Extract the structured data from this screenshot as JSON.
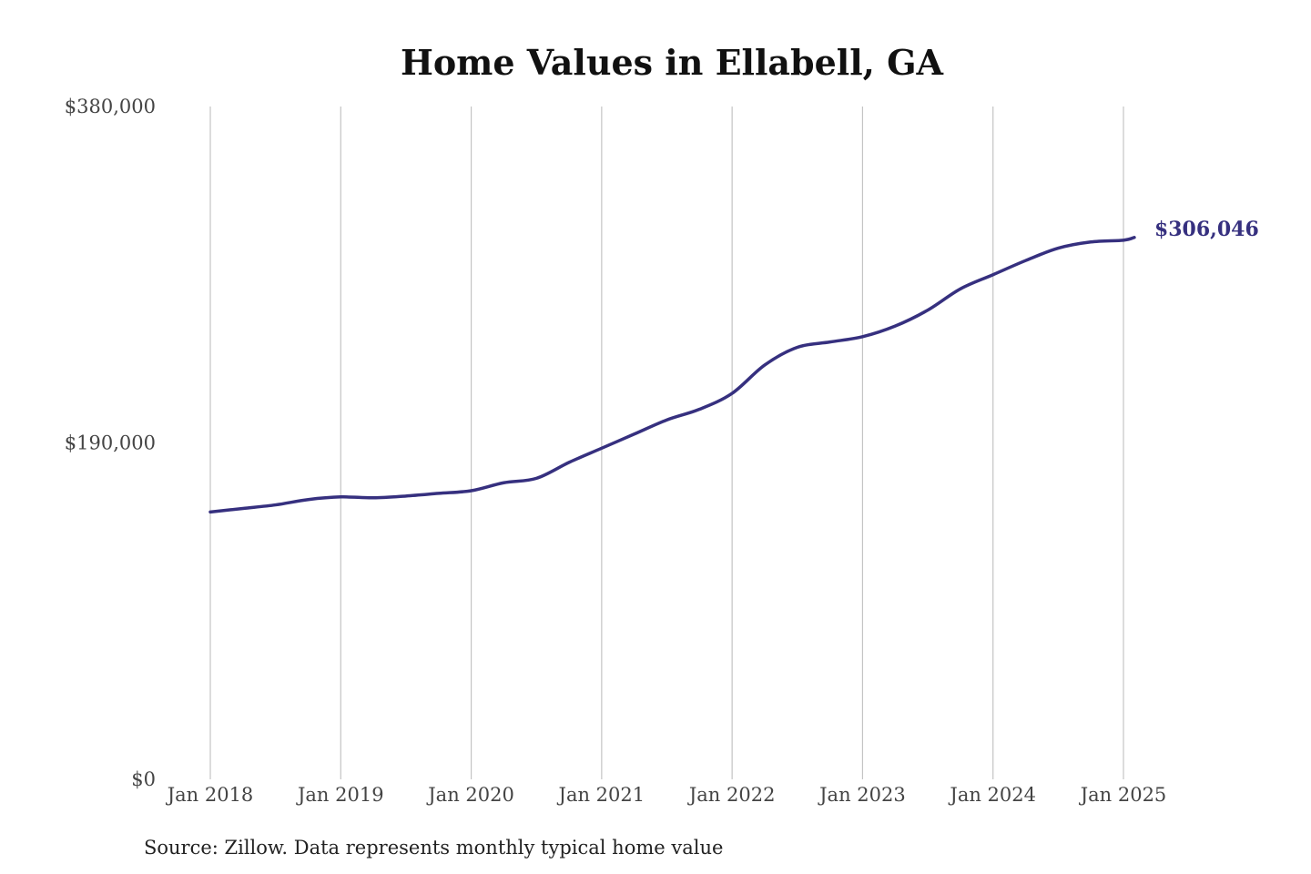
{
  "chart_data": {
    "type": "line",
    "title": "Home Values in Ellabell, GA",
    "xlabel": "",
    "ylabel": "",
    "x_ticks": [
      "Jan 2018",
      "Jan 2019",
      "Jan 2020",
      "Jan 2021",
      "Jan 2022",
      "Jan 2023",
      "Jan 2024",
      "Jan 2025"
    ],
    "y_ticks": [
      "$0",
      "$190,000",
      "$380,000"
    ],
    "ylim": [
      0,
      380000
    ],
    "xlim": [
      "Jan 2018",
      "Jan 2025"
    ],
    "grid": "vertical",
    "series": [
      {
        "values": [
          {
            "x": "Jan 2018",
            "y": 151000
          },
          {
            "x": "Apr 2018",
            "y": 153000
          },
          {
            "x": "Jul 2018",
            "y": 155000
          },
          {
            "x": "Oct 2018",
            "y": 158000
          },
          {
            "x": "Jan 2019",
            "y": 159500
          },
          {
            "x": "Apr 2019",
            "y": 159000
          },
          {
            "x": "Jul 2019",
            "y": 160000
          },
          {
            "x": "Oct 2019",
            "y": 161500
          },
          {
            "x": "Jan 2020",
            "y": 163000
          },
          {
            "x": "Apr 2020",
            "y": 167500
          },
          {
            "x": "Jul 2020",
            "y": 170000
          },
          {
            "x": "Oct 2020",
            "y": 179000
          },
          {
            "x": "Jan 2021",
            "y": 187000
          },
          {
            "x": "Apr 2021",
            "y": 195000
          },
          {
            "x": "Jul 2021",
            "y": 203000
          },
          {
            "x": "Oct 2021",
            "y": 209000
          },
          {
            "x": "Jan 2022",
            "y": 218000
          },
          {
            "x": "Apr 2022",
            "y": 234000
          },
          {
            "x": "Jul 2022",
            "y": 244000
          },
          {
            "x": "Oct 2022",
            "y": 247000
          },
          {
            "x": "Jan 2023",
            "y": 250000
          },
          {
            "x": "Apr 2023",
            "y": 256000
          },
          {
            "x": "Jul 2023",
            "y": 265000
          },
          {
            "x": "Oct 2023",
            "y": 277000
          },
          {
            "x": "Jan 2024",
            "y": 285000
          },
          {
            "x": "Apr 2024",
            "y": 293000
          },
          {
            "x": "Jul 2024",
            "y": 300000
          },
          {
            "x": "Oct 2024",
            "y": 303500
          },
          {
            "x": "Jan 2025",
            "y": 304500
          },
          {
            "x": "Feb 2025",
            "y": 306046
          }
        ],
        "end_label": "$306,046"
      }
    ],
    "source": "Source: Zillow. Data represents monthly typical home value"
  },
  "colors": {
    "line": "#36307f",
    "grid": "#c4c4c4",
    "background": "#ffffff"
  }
}
